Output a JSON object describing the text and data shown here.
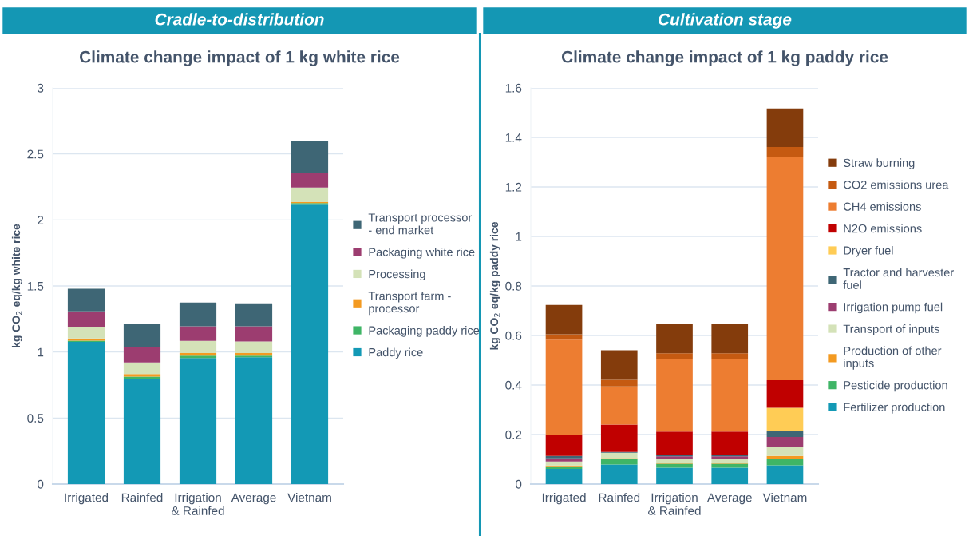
{
  "chart_data": [
    {
      "type": "bar",
      "stacked": true,
      "title": "Cradle-to-distribution",
      "subtitle": "Climate change impact of 1 kg white rice",
      "ylabel": "kg CO$_{2}$ eq/kg white rice",
      "categories": [
        "Irrigated",
        "Rainfed",
        "Irrigation\n& Rainfed",
        "Average",
        "Vietnam"
      ],
      "ylim": [
        0,
        3
      ],
      "yticks": [
        0,
        0.5,
        1,
        1.5,
        2,
        2.5,
        3
      ],
      "grid": "y",
      "legend": "right",
      "series": [
        {
          "name": "Paddy rice",
          "color": "#1399b5",
          "values": [
            1.076,
            0.797,
            0.954,
            0.96,
            2.115
          ]
        },
        {
          "name": "Packaging paddy rice",
          "color": "#3fb566",
          "values": [
            0.01,
            0.016,
            0.018,
            0.012,
            0.012
          ]
        },
        {
          "name": "Transport farm -\nprocessor",
          "color": "#f39a21",
          "values": [
            0.016,
            0.02,
            0.02,
            0.02,
            0.008
          ]
        },
        {
          "name": "Processing",
          "color": "#d4e2b8",
          "values": [
            0.09,
            0.088,
            0.092,
            0.088,
            0.11
          ]
        },
        {
          "name": "Packaging white rice",
          "color": "#9c3d70",
          "values": [
            0.116,
            0.114,
            0.11,
            0.114,
            0.112
          ]
        },
        {
          "name": "Transport processor\n- end market",
          "color": "#3e6675",
          "values": [
            0.171,
            0.175,
            0.181,
            0.175,
            0.239
          ]
        }
      ]
    },
    {
      "type": "bar",
      "stacked": true,
      "title": "Cultivation stage",
      "subtitle": "Climate change impact of 1 kg paddy rice",
      "ylabel": "kg CO$_{2}$ eq/kg paddy rice",
      "categories": [
        "Irrigated",
        "Rainfed",
        "Irrigation\n& Rainfed",
        "Average",
        "Vietnam"
      ],
      "ylim": [
        0,
        1.6
      ],
      "yticks": [
        0,
        0.2,
        0.4,
        0.6,
        0.8,
        1,
        1.2,
        1.4,
        1.6
      ],
      "grid": "y",
      "legend": "right",
      "series": [
        {
          "name": "Fertilizer production",
          "color": "#1399b5",
          "values": [
            0.061,
            0.079,
            0.066,
            0.066,
            0.076
          ]
        },
        {
          "name": "Pesticide production",
          "color": "#3fb566",
          "values": [
            0.011,
            0.023,
            0.016,
            0.016,
            0.026
          ]
        },
        {
          "name": "Production of other\ninputs",
          "color": "#f39a21",
          "values": [
            0.003,
            0.003,
            0.004,
            0.004,
            0.012
          ]
        },
        {
          "name": "Transport of inputs",
          "color": "#d4e2b8",
          "values": [
            0.016,
            0.022,
            0.016,
            0.016,
            0.034
          ]
        },
        {
          "name": "Irrigation pump fuel",
          "color": "#9c3d70",
          "values": [
            0.013,
            0,
            0.01,
            0.01,
            0.042
          ]
        },
        {
          "name": "Tractor and harvester\nfuel",
          "color": "#3e6675",
          "values": [
            0.01,
            0.003,
            0.007,
            0.007,
            0.025
          ]
        },
        {
          "name": "Dryer fuel",
          "color": "#ffcc55",
          "values": [
            0,
            0,
            0,
            0,
            0.093
          ]
        },
        {
          "name": "N2O emissions",
          "color": "#c00000",
          "values": [
            0.084,
            0.11,
            0.093,
            0.093,
            0.111
          ]
        },
        {
          "name": "CH4 emissions",
          "color": "#ed7d31",
          "values": [
            0.385,
            0.154,
            0.293,
            0.293,
            0.903
          ]
        },
        {
          "name": "CO2 emissions urea",
          "color": "#c55a11",
          "values": [
            0.022,
            0.027,
            0.023,
            0.023,
            0.039
          ]
        },
        {
          "name": "Straw burning",
          "color": "#843c0c",
          "values": [
            0.118,
            0.119,
            0.119,
            0.119,
            0.156
          ]
        }
      ]
    }
  ]
}
